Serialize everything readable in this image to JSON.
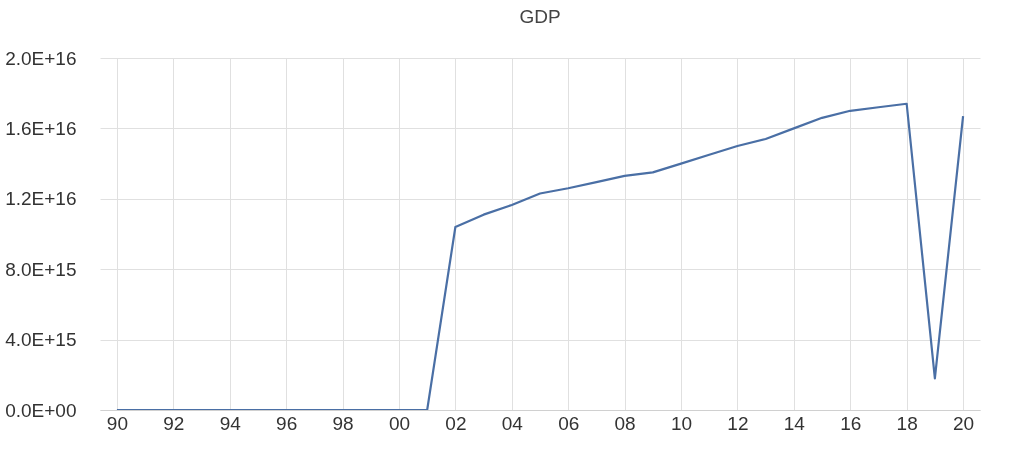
{
  "chart_data": {
    "type": "line",
    "title": "GDP",
    "x": [
      1990,
      2001,
      2002,
      2003,
      2004,
      2005,
      2006,
      2007,
      2008,
      2009,
      2010,
      2011,
      2012,
      2013,
      2014,
      2015,
      2016,
      2017,
      2018,
      2019,
      2020
    ],
    "series": [
      {
        "color": "#4a6fa5",
        "values": [
          0,
          0,
          1.04e+16,
          1.11e+16,
          1.165e+16,
          1.23e+16,
          1.26e+16,
          1.295e+16,
          1.33e+16,
          1.35e+16,
          1.4e+16,
          1.45e+16,
          1.5e+16,
          1.54e+16,
          1.6e+16,
          1.66e+16,
          1.7e+16,
          1.72e+16,
          1.74e+16,
          1800000000000000.0,
          1.67e+16
        ]
      }
    ],
    "xlim": [
      1989.4,
      2020.6
    ],
    "xticks": [
      {
        "value": 1990,
        "label": "90"
      },
      {
        "value": 1992,
        "label": "92"
      },
      {
        "value": 1994,
        "label": "94"
      },
      {
        "value": 1996,
        "label": "96"
      },
      {
        "value": 1998,
        "label": "98"
      },
      {
        "value": 2000,
        "label": "00"
      },
      {
        "value": 2002,
        "label": "02"
      },
      {
        "value": 2004,
        "label": "04"
      },
      {
        "value": 2006,
        "label": "06"
      },
      {
        "value": 2008,
        "label": "08"
      },
      {
        "value": 2010,
        "label": "10"
      },
      {
        "value": 2012,
        "label": "12"
      },
      {
        "value": 2014,
        "label": "14"
      },
      {
        "value": 2016,
        "label": "16"
      },
      {
        "value": 2018,
        "label": "18"
      },
      {
        "value": 2020,
        "label": "20"
      }
    ],
    "ylim": [
      0,
      2e+16
    ],
    "yticks": [
      {
        "value": 0,
        "label": "0.0E+00"
      },
      {
        "value": 4000000000000000.0,
        "label": "4.0E+15"
      },
      {
        "value": 8000000000000000.0,
        "label": "8.0E+15"
      },
      {
        "value": 1.2e+16,
        "label": "1.2E+16"
      },
      {
        "value": 1.6e+16,
        "label": "1.6E+16"
      },
      {
        "value": 2e+16,
        "label": "2.0E+16"
      }
    ],
    "grid": true,
    "line_style": "solid"
  }
}
